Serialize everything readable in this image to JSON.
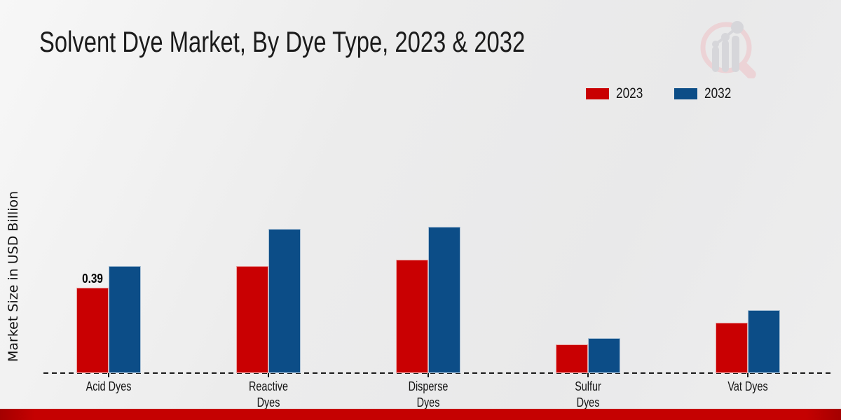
{
  "header": {
    "title": "Solvent Dye Market, By Dye Type, 2023 & 2032",
    "logo_name": "growth-chart-magnifier-logo"
  },
  "legend": {
    "items": [
      {
        "label": "2023",
        "color": "#c90002"
      },
      {
        "label": "2032",
        "color": "#0c4d87"
      }
    ]
  },
  "chart_data": {
    "type": "bar",
    "title": "Solvent Dye Market, By Dye Type, 2023 & 2032",
    "xlabel": "",
    "ylabel": "Market Size in USD Billion",
    "categories": [
      "Acid Dyes",
      "Reactive Dyes",
      "Disperse Dyes",
      "Sulfur Dyes",
      "Vat Dyes"
    ],
    "category_label_lines": [
      [
        "Acid Dyes"
      ],
      [
        "Reactive",
        "Dyes"
      ],
      [
        "Disperse",
        "Dyes"
      ],
      [
        "Sulfur",
        "Dyes"
      ],
      [
        "Vat Dyes"
      ]
    ],
    "series": [
      {
        "name": "2023",
        "color": "#c90002",
        "values": [
          0.39,
          0.49,
          0.52,
          0.13,
          0.23
        ]
      },
      {
        "name": "2032",
        "color": "#0c4d87",
        "values": [
          0.49,
          0.66,
          0.67,
          0.16,
          0.29
        ]
      }
    ],
    "data_labels": [
      {
        "series": "2023",
        "category": "Acid Dyes",
        "text": "0.39"
      }
    ],
    "ylim": [
      0,
      0.72
    ],
    "grid": false,
    "baseline_style": "dashed",
    "legend_position": "top-right",
    "value_axis_ticks_visible": false
  },
  "footer": {
    "bar_color": "#c50101"
  }
}
